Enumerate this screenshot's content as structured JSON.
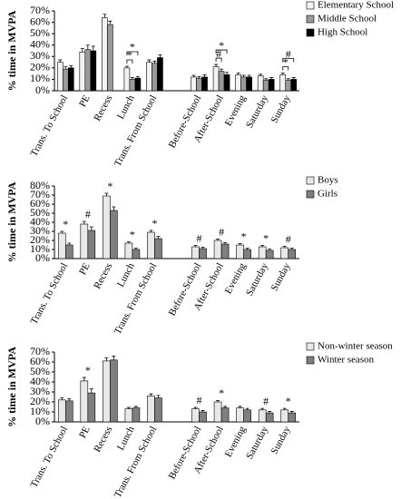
{
  "chart_data": [
    {
      "type": "bar",
      "ylabel": "% time in MVPA",
      "categories": [
        "Trans. To School",
        "PE",
        "Recess",
        "Lunch",
        "Trans. From School",
        null,
        "Before-School",
        "After-School",
        "Evening",
        "Saturday",
        "Sunday"
      ],
      "series": [
        {
          "name": "Elementary School",
          "color": "#f2f2f2",
          "values": [
            25,
            34,
            64,
            20,
            25,
            null,
            12,
            21,
            14,
            13,
            14
          ],
          "errors": [
            2,
            3,
            3,
            1.5,
            2,
            null,
            1.5,
            2,
            1.5,
            1.5,
            1.5
          ]
        },
        {
          "name": "Middle School",
          "color": "#9a9a9a",
          "values": [
            19,
            36,
            58,
            10,
            24,
            null,
            11,
            17,
            12,
            9,
            9
          ],
          "errors": [
            2,
            4,
            3,
            1.5,
            2,
            null,
            1.5,
            2,
            1.5,
            1.5,
            1.5
          ]
        },
        {
          "name": "High School",
          "color": "#000000",
          "values": [
            20,
            35,
            null,
            11,
            29,
            null,
            12,
            14,
            12,
            10,
            10
          ],
          "errors": [
            2,
            4,
            null,
            1.5,
            2.5,
            null,
            2,
            2,
            1.5,
            1.5,
            1.5
          ]
        }
      ],
      "ylim": [
        0,
        70
      ],
      "yticks": [
        {
          "value": 0,
          "label": "0%"
        },
        {
          "value": 10,
          "label": "10%"
        },
        {
          "value": 20,
          "label": "20%"
        },
        {
          "value": 30,
          "label": "30%"
        },
        {
          "value": 40,
          "label": "40%"
        },
        {
          "value": 50,
          "label": "50%"
        },
        {
          "value": 60,
          "label": "60%"
        },
        {
          "value": 70,
          "label": "70%"
        }
      ],
      "annotations": [
        {
          "x": "Lunch",
          "text": "*"
        },
        {
          "x": "Lunch",
          "text": "*"
        },
        {
          "x": "After-School",
          "text": "*"
        },
        {
          "x": "After-School",
          "text": "#"
        },
        {
          "x": "Sunday",
          "text": "#"
        },
        {
          "x": "Sunday",
          "text": "*"
        }
      ]
    },
    {
      "type": "bar",
      "ylabel": "% time in MVPA",
      "categories": [
        "Trans. To School",
        "PE",
        "Recess",
        "Lunch",
        "Trans. From School",
        null,
        "Before-School",
        "After-School",
        "Evening",
        "Saturday",
        "Sunday"
      ],
      "series": [
        {
          "name": "Boys",
          "color": "#e8e8e8",
          "values": [
            28,
            38,
            69,
            17,
            29,
            null,
            13,
            20,
            15,
            13,
            12
          ],
          "errors": [
            2,
            3,
            3,
            1.5,
            2,
            null,
            1.5,
            1.5,
            1.5,
            1.5,
            1.5
          ]
        },
        {
          "name": "Girls",
          "color": "#7f7f7f",
          "values": [
            15,
            31,
            53,
            10,
            22,
            null,
            11,
            16,
            10,
            9,
            10
          ],
          "errors": [
            2,
            4,
            4,
            1.5,
            2.5,
            null,
            1.5,
            1.5,
            1.5,
            1.5,
            1.5
          ]
        }
      ],
      "ylim": [
        0,
        80
      ],
      "yticks": [
        {
          "value": 0,
          "label": "0%"
        },
        {
          "value": 10,
          "label": "10%"
        },
        {
          "value": 20,
          "label": "20%"
        },
        {
          "value": 30,
          "label": "30%"
        },
        {
          "value": 40,
          "label": "40%"
        },
        {
          "value": 50,
          "label": "50%"
        },
        {
          "value": 60,
          "label": "60%"
        },
        {
          "value": 70,
          "label": "70%"
        },
        {
          "value": 80,
          "label": "80%"
        }
      ],
      "annotations": [
        {
          "x": "Trans. To School",
          "text": "*"
        },
        {
          "x": "PE",
          "text": "#"
        },
        {
          "x": "Recess",
          "text": "*"
        },
        {
          "x": "Lunch",
          "text": "*"
        },
        {
          "x": "Trans. From School",
          "text": "*"
        },
        {
          "x": "Before-School",
          "text": "#"
        },
        {
          "x": "After-School",
          "text": "#"
        },
        {
          "x": "Evening",
          "text": "*"
        },
        {
          "x": "Saturday",
          "text": "*"
        },
        {
          "x": "Sunday",
          "text": "#"
        }
      ]
    },
    {
      "type": "bar",
      "ylabel": "% time in MVPA",
      "categories": [
        "Trans. To School",
        "PE",
        "Recess",
        "Lunch",
        "Trans. From School",
        null,
        "Before-School",
        "After-School",
        "Evening",
        "Saturday",
        "Sunday"
      ],
      "series": [
        {
          "name": "Non-winter season",
          "color": "#e8e8e8",
          "values": [
            22,
            41,
            61,
            13,
            26,
            null,
            13,
            20,
            14,
            12,
            12
          ],
          "errors": [
            2,
            3.5,
            3,
            1.5,
            2,
            null,
            1.5,
            1.5,
            1.5,
            1.5,
            1.5
          ]
        },
        {
          "name": "Winter season",
          "color": "#7f7f7f",
          "values": [
            21,
            29,
            62,
            14,
            24,
            null,
            10,
            14,
            12,
            9,
            9
          ],
          "errors": [
            2,
            4,
            4,
            1.5,
            2.5,
            null,
            1.5,
            1.5,
            1.5,
            1.5,
            1.5
          ]
        }
      ],
      "ylim": [
        0,
        70
      ],
      "yticks": [
        {
          "value": 0,
          "label": "0%"
        },
        {
          "value": 10,
          "label": "10%"
        },
        {
          "value": 20,
          "label": "20%"
        },
        {
          "value": 30,
          "label": "30%"
        },
        {
          "value": 40,
          "label": "40%"
        },
        {
          "value": 50,
          "label": "50%"
        },
        {
          "value": 60,
          "label": "60%"
        },
        {
          "value": 70,
          "label": "70%"
        }
      ],
      "annotations": [
        {
          "x": "PE",
          "text": "*"
        },
        {
          "x": "Before-School",
          "text": "#"
        },
        {
          "x": "After-School",
          "text": "*"
        },
        {
          "x": "Saturday",
          "text": "#"
        },
        {
          "x": "Sunday",
          "text": "*"
        }
      ]
    }
  ]
}
